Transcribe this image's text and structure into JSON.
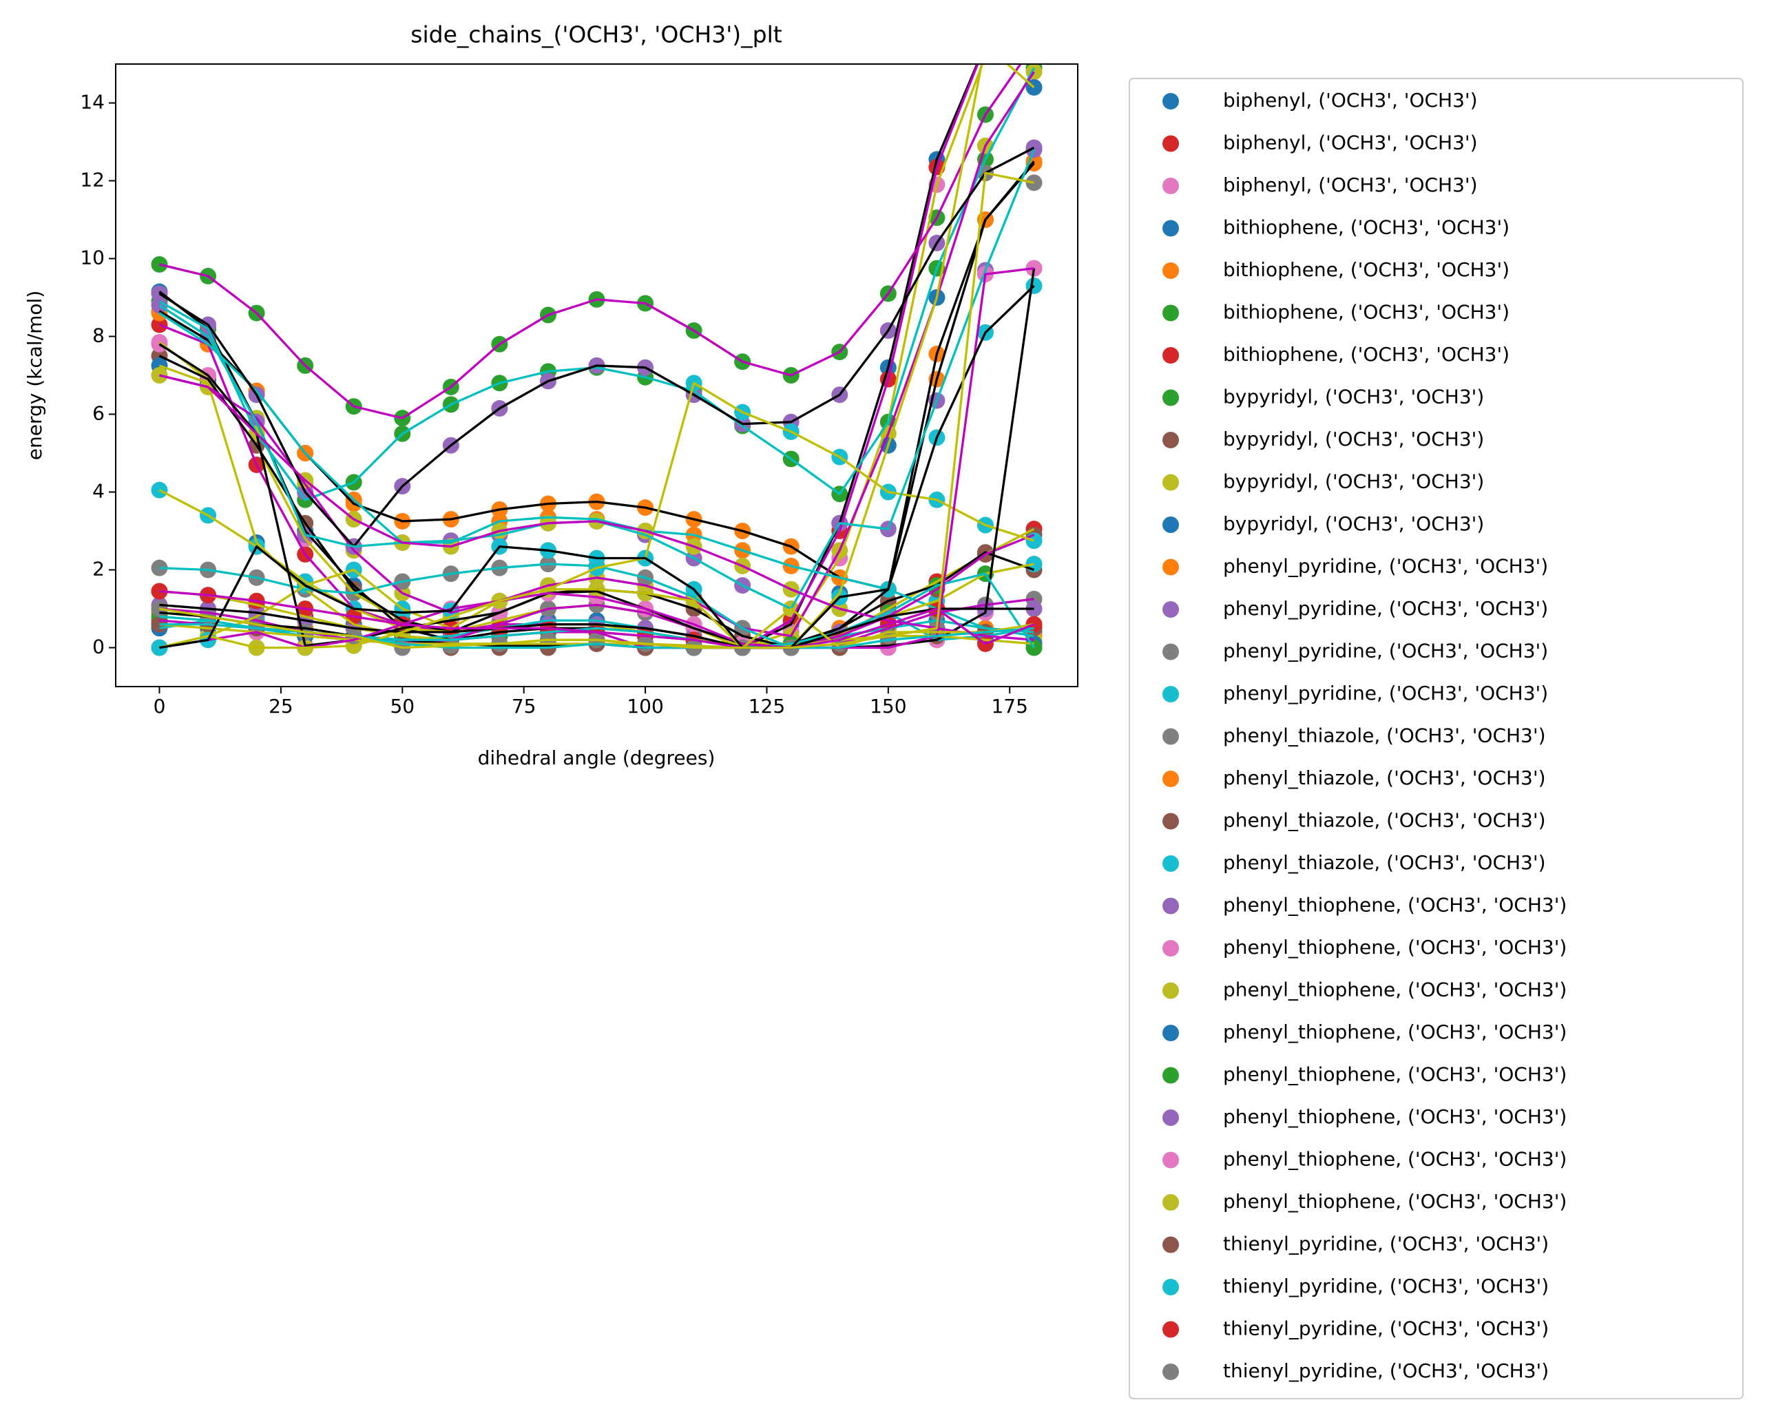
{
  "chart_data": {
    "type": "scatter",
    "title": "side_chains_('OCH3', 'OCH3')_plt",
    "x_label": "dihedral angle (degrees)",
    "y_label": "energy (kcal/mol)",
    "x": [
      0,
      10,
      20,
      30,
      40,
      50,
      60,
      70,
      80,
      90,
      100,
      110,
      120,
      130,
      140,
      150,
      160,
      170,
      180
    ],
    "xlim": [
      -9,
      189
    ],
    "ylim": [
      -1,
      15
    ],
    "xticks": [
      0,
      25,
      50,
      75,
      100,
      125,
      150,
      175
    ],
    "yticks": [
      0,
      2,
      4,
      6,
      8,
      10,
      12,
      14
    ],
    "series": [
      {
        "name": "biphenyl, ('OCH3', 'OCH3')",
        "color": "#1f77b4",
        "line_color": "#000000",
        "values": [
          9.15,
          8.2,
          5.8,
          3.0,
          1.6,
          0.5,
          0.2,
          0.4,
          0.5,
          0.5,
          0.4,
          0.2,
          0.0,
          0.6,
          3.2,
          7.2,
          12.55,
          15.5,
          16
        ]
      },
      {
        "name": "biphenyl, ('OCH3', 'OCH3')",
        "color": "#d62728",
        "line_color": "#bf00bf",
        "values": [
          8.3,
          7.8,
          4.7,
          2.4,
          1.0,
          0.6,
          0.4,
          0.6,
          0.6,
          0.6,
          0.5,
          0.3,
          0.0,
          0.7,
          3.0,
          6.9,
          12.35,
          15.5,
          16
        ]
      },
      {
        "name": "biphenyl, ('OCH3', 'OCH3')",
        "color": "#e377c2",
        "line_color": "#bfbf00",
        "values": [
          7.85,
          6.9,
          5.2,
          2.8,
          1.4,
          0.7,
          0.4,
          0.7,
          1.0,
          1.1,
          0.9,
          0.5,
          0.0,
          0.4,
          2.3,
          5.8,
          11.9,
          15.2,
          16
        ]
      },
      {
        "name": "bithiophene, ('OCH3', 'OCH3')",
        "color": "#1f77b4",
        "line_color": "#00bfbf",
        "values": [
          0.5,
          0.7,
          0.5,
          0.3,
          0.2,
          0.2,
          0.3,
          0.5,
          0.7,
          0.7,
          0.5,
          0.3,
          0.0,
          0.1,
          0.3,
          0.5,
          0.7,
          0.5,
          0.4
        ]
      },
      {
        "name": "bithiophene, ('OCH3', 'OCH3')",
        "color": "#ff7f0e",
        "line_color": "#000000",
        "values": [
          8.65,
          7.9,
          6.6,
          5.0,
          3.7,
          3.25,
          3.3,
          3.55,
          3.7,
          3.75,
          3.6,
          3.3,
          3.0,
          2.6,
          1.8,
          1.5,
          7.55,
          11.0,
          12.45
        ]
      },
      {
        "name": "bithiophene, ('OCH3', 'OCH3')",
        "color": "#2ca02c",
        "line_color": "#bf00bf",
        "values": [
          9.85,
          9.55,
          8.6,
          7.25,
          6.2,
          5.9,
          6.7,
          7.8,
          8.55,
          8.95,
          8.85,
          8.15,
          7.35,
          7.0,
          7.6,
          9.1,
          11.05,
          13.7,
          15.5
        ]
      },
      {
        "name": "bithiophene, ('OCH3', 'OCH3')",
        "color": "#d62728",
        "line_color": "#bfbf00",
        "values": [
          1.45,
          1.35,
          1.1,
          0.8,
          0.5,
          0.3,
          0.2,
          0.3,
          0.4,
          0.4,
          0.3,
          0.2,
          0.1,
          0.1,
          0.3,
          1.0,
          1.7,
          2.4,
          3.05
        ]
      },
      {
        "name": "bypyridyl, ('OCH3', 'OCH3')",
        "color": "#2ca02c",
        "line_color": "#00bfbf",
        "values": [
          8.9,
          8.2,
          5.5,
          3.8,
          4.25,
          5.5,
          6.25,
          6.8,
          7.1,
          7.2,
          6.95,
          6.6,
          5.7,
          4.85,
          3.95,
          5.8,
          9.75,
          12.55,
          14.9
        ]
      },
      {
        "name": "bypyridyl, ('OCH3', 'OCH3')",
        "color": "#8c564b",
        "line_color": "#000000",
        "values": [
          7.5,
          6.9,
          5.2,
          3.2,
          1.5,
          0.7,
          0.4,
          0.9,
          1.4,
          1.5,
          1.4,
          1.0,
          0.3,
          0.0,
          0.5,
          1.2,
          1.6,
          2.45,
          2.0
        ]
      },
      {
        "name": "bypyridyl, ('OCH3', 'OCH3')",
        "color": "#bcbd22",
        "line_color": "#bf00bf",
        "values": [
          7.0,
          6.7,
          5.9,
          4.2,
          2.5,
          1.4,
          0.9,
          1.2,
          1.6,
          1.8,
          1.6,
          1.2,
          0.5,
          0.3,
          2.5,
          5.5,
          9.0,
          12.9,
          14.8
        ]
      },
      {
        "name": "bypyridyl, ('OCH3', 'OCH3')",
        "color": "#1f77b4",
        "line_color": "#bfbf00",
        "values": [
          7.25,
          6.8,
          2.7,
          1.5,
          0.6,
          0.3,
          0.1,
          0.1,
          0.2,
          0.2,
          0.1,
          0.0,
          0.0,
          0.0,
          1.4,
          5.2,
          9.0,
          15.5,
          14.4
        ]
      },
      {
        "name": "phenyl_pyridine, ('OCH3', 'OCH3')",
        "color": "#ff7f0e",
        "line_color": "#00bfbf",
        "values": [
          8.6,
          7.8,
          6.6,
          5.0,
          3.8,
          2.7,
          2.7,
          3.25,
          3.35,
          3.3,
          3.0,
          2.9,
          2.5,
          2.1,
          1.8,
          1.5,
          1.0,
          0.5,
          0.3
        ]
      },
      {
        "name": "phenyl_pyridine, ('OCH3', 'OCH3')",
        "color": "#9467bd",
        "line_color": "#000000",
        "values": [
          9.1,
          8.3,
          6.5,
          4.0,
          2.6,
          4.15,
          5.2,
          6.15,
          6.85,
          7.25,
          7.2,
          6.5,
          5.75,
          5.8,
          6.5,
          8.15,
          10.4,
          12.2,
          12.85
        ]
      },
      {
        "name": "phenyl_pyridine, ('OCH3', 'OCH3')",
        "color": "#7f7f7f",
        "line_color": "#bf00bf",
        "values": [
          1.0,
          0.9,
          0.7,
          0.4,
          0.2,
          0.1,
          0.2,
          0.6,
          1.0,
          1.1,
          0.9,
          0.5,
          0.1,
          0.0,
          0.1,
          0.5,
          0.9,
          1.1,
          1.25
        ]
      },
      {
        "name": "phenyl_pyridine, ('OCH3', 'OCH3')",
        "color": "#17becf",
        "line_color": "#bfbf00",
        "values": [
          4.05,
          3.4,
          2.6,
          1.7,
          1.0,
          0.5,
          0.4,
          0.5,
          0.6,
          0.6,
          0.4,
          0.2,
          0.0,
          0.0,
          0.4,
          0.8,
          1.2,
          1.9,
          2.15
        ]
      },
      {
        "name": "phenyl_thiazole, ('OCH3', 'OCH3')",
        "color": "#7f7f7f",
        "line_color": "#00bfbf",
        "values": [
          2.05,
          2.0,
          1.8,
          1.5,
          1.4,
          1.7,
          1.9,
          2.05,
          2.15,
          2.1,
          1.8,
          1.3,
          0.5,
          0.0,
          0.4,
          0.9,
          0.2,
          0.3,
          0.5
        ]
      },
      {
        "name": "phenyl_thiazole, ('OCH3', 'OCH3')",
        "color": "#ff7f0e",
        "line_color": "#000000",
        "values": [
          0.9,
          0.8,
          0.6,
          0.5,
          0.3,
          0.2,
          0.1,
          0.05,
          0.05,
          0.1,
          0.0,
          0.0,
          0.0,
          0.1,
          0.5,
          1.5,
          6.9,
          11.0,
          12.5
        ]
      },
      {
        "name": "phenyl_thiazole, ('OCH3', 'OCH3')",
        "color": "#8c564b",
        "line_color": "#bf00bf",
        "values": [
          0.7,
          0.6,
          0.5,
          0.4,
          0.3,
          0.2,
          0.2,
          0.3,
          0.4,
          0.4,
          0.0,
          0.0,
          0.0,
          0.0,
          0.3,
          0.8,
          1.5,
          2.4,
          2.9
        ]
      },
      {
        "name": "phenyl_thiazole, ('OCH3', 'OCH3')",
        "color": "#17becf",
        "line_color": "#bfbf00",
        "values": [
          0.0,
          0.3,
          0.8,
          1.6,
          2.0,
          1.0,
          0.5,
          1.2,
          1.5,
          2.05,
          2.3,
          6.8,
          6.05,
          5.55,
          4.9,
          4.0,
          3.8,
          3.15,
          2.75
        ]
      },
      {
        "name": "phenyl_thiophene, ('OCH3', 'OCH3')",
        "color": "#9467bd",
        "line_color": "#00bfbf",
        "values": [
          8.8,
          8.0,
          5.8,
          2.9,
          2.6,
          2.7,
          2.75,
          2.9,
          3.2,
          3.25,
          2.9,
          2.3,
          1.6,
          1.0,
          3.2,
          3.05,
          6.35,
          9.7,
          12.8
        ]
      },
      {
        "name": "phenyl_thiophene, ('OCH3', 'OCH3')",
        "color": "#e377c2",
        "line_color": "#000000",
        "values": [
          7.8,
          7.0,
          5.5,
          0.05,
          0.2,
          0.5,
          0.7,
          0.9,
          1.4,
          1.45,
          1.0,
          0.5,
          0.1,
          0.0,
          0.0,
          0.05,
          0.2,
          0.9,
          9.75
        ]
      },
      {
        "name": "phenyl_thiophene, ('OCH3', 'OCH3')",
        "color": "#bcbd22",
        "line_color": "#bf00bf",
        "values": [
          7.0,
          6.7,
          5.5,
          4.3,
          3.3,
          2.7,
          2.6,
          3.0,
          3.2,
          3.25,
          3.0,
          2.6,
          2.1,
          1.5,
          1.0,
          0.7,
          0.5,
          0.3,
          0.2
        ]
      },
      {
        "name": "phenyl_thiophene, ('OCH3', 'OCH3')",
        "color": "#1f77b4",
        "line_color": "#bfbf00",
        "values": [
          0.6,
          0.5,
          0.4,
          0.3,
          0.2,
          0.1,
          0.1,
          0.1,
          0.1,
          0.1,
          0.1,
          0.05,
          0.0,
          0.05,
          0.2,
          0.3,
          0.3,
          0.2,
          0.1
        ]
      },
      {
        "name": "phenyl_thiophene, ('OCH3', 'OCH3')",
        "color": "#2ca02c",
        "line_color": "#00bfbf",
        "values": [
          0.8,
          0.7,
          0.5,
          0.4,
          0.3,
          0.2,
          0.2,
          0.3,
          0.4,
          0.5,
          0.4,
          0.2,
          0.0,
          0.1,
          0.4,
          0.9,
          1.6,
          1.9,
          0.0
        ]
      },
      {
        "name": "phenyl_thiophene, ('OCH3', 'OCH3')",
        "color": "#9467bd",
        "line_color": "#000000",
        "values": [
          1.1,
          1.0,
          0.9,
          0.7,
          0.5,
          0.4,
          0.4,
          0.5,
          0.6,
          0.6,
          0.5,
          0.3,
          0.0,
          0.0,
          0.4,
          0.8,
          1.0,
          1.0,
          1.0
        ]
      },
      {
        "name": "phenyl_thiophene, ('OCH3', 'OCH3')",
        "color": "#e377c2",
        "line_color": "#bf00bf",
        "values": [
          0.0,
          0.2,
          0.4,
          0.0,
          0.2,
          0.6,
          1.0,
          1.2,
          1.4,
          1.3,
          1.0,
          0.6,
          0.1,
          0.0,
          0.0,
          0.0,
          0.3,
          9.6,
          9.75
        ]
      },
      {
        "name": "phenyl_thiophene, ('OCH3', 'OCH3')",
        "color": "#bcbd22",
        "line_color": "#bfbf00",
        "values": [
          0.0,
          0.3,
          0.0,
          0.0,
          0.05,
          0.4,
          0.8,
          1.2,
          1.5,
          1.5,
          1.4,
          1.2,
          0.0,
          1.0,
          0.0,
          0.4,
          0.4,
          0.4,
          0.6
        ]
      },
      {
        "name": "thienyl_pyridine, ('OCH3', 'OCH3')",
        "color": "#8c564b",
        "line_color": "#00bfbf",
        "values": [
          0.6,
          0.6,
          0.5,
          0.4,
          0.3,
          0.1,
          0.0,
          0.0,
          0.0,
          0.1,
          0.0,
          0.0,
          0.0,
          0.0,
          0.0,
          0.2,
          0.3,
          0.4,
          0.5
        ]
      },
      {
        "name": "thienyl_pyridine, ('OCH3', 'OCH3')",
        "color": "#17becf",
        "line_color": "#000000",
        "values": [
          0.0,
          0.2,
          2.6,
          1.6,
          1.0,
          0.9,
          0.95,
          2.6,
          2.5,
          2.3,
          2.3,
          1.5,
          0.0,
          0.0,
          1.3,
          1.5,
          5.4,
          8.1,
          9.3
        ]
      },
      {
        "name": "thienyl_pyridine, ('OCH3', 'OCH3')",
        "color": "#d62728",
        "line_color": "#bf00bf",
        "values": [
          1.45,
          1.35,
          1.2,
          1.0,
          0.8,
          0.6,
          0.5,
          0.5,
          0.5,
          0.4,
          0.3,
          0.2,
          0.0,
          0.0,
          0.2,
          0.6,
          1.0,
          0.1,
          0.6
        ]
      },
      {
        "name": "thienyl_pyridine, ('OCH3', 'OCH3')",
        "color": "#7f7f7f",
        "line_color": "#bfbf00",
        "values": [
          1.0,
          0.8,
          0.6,
          0.4,
          0.3,
          0.0,
          0.05,
          0.1,
          0.2,
          0.2,
          0.1,
          0.0,
          0.0,
          0.0,
          0.1,
          0.3,
          0.5,
          12.2,
          11.95
        ]
      }
    ]
  }
}
